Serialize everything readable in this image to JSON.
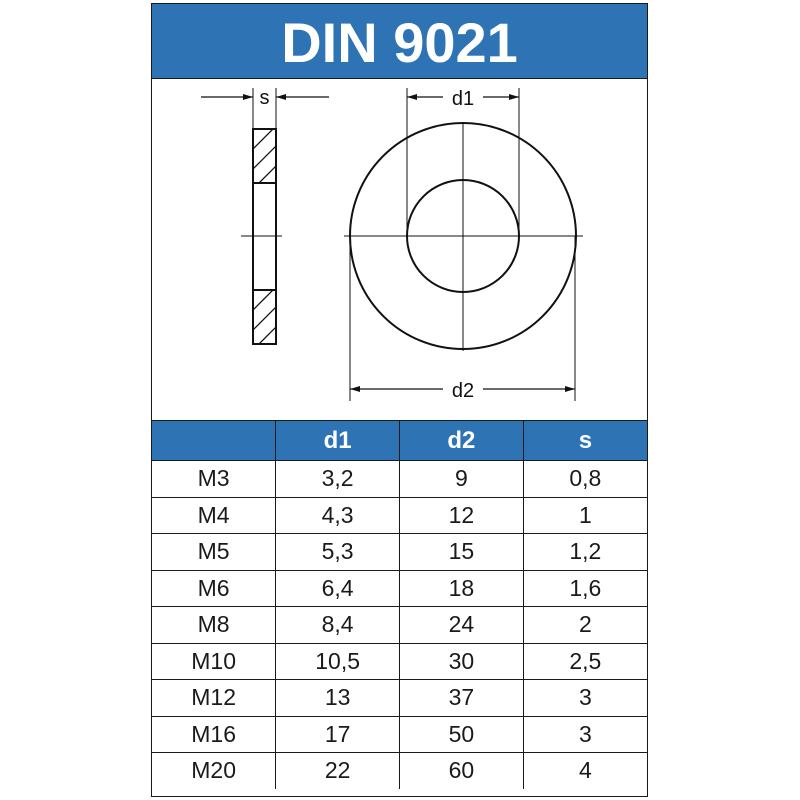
{
  "title": "DIN 9021",
  "brand_color": "#2e74b5",
  "drawing": {
    "label_s": "s",
    "label_d1": "d1",
    "label_d2": "d2"
  },
  "table": {
    "headers": [
      "",
      "d1",
      "d2",
      "s"
    ],
    "rows": [
      [
        "M3",
        "3,2",
        "9",
        "0,8"
      ],
      [
        "M4",
        "4,3",
        "12",
        "1"
      ],
      [
        "M5",
        "5,3",
        "15",
        "1,2"
      ],
      [
        "M6",
        "6,4",
        "18",
        "1,6"
      ],
      [
        "M8",
        "8,4",
        "24",
        "2"
      ],
      [
        "M10",
        "10,5",
        "30",
        "2,5"
      ],
      [
        "M12",
        "13",
        "37",
        "3"
      ],
      [
        "M16",
        "17",
        "50",
        "3"
      ],
      [
        "M20",
        "22",
        "60",
        "4"
      ]
    ]
  }
}
